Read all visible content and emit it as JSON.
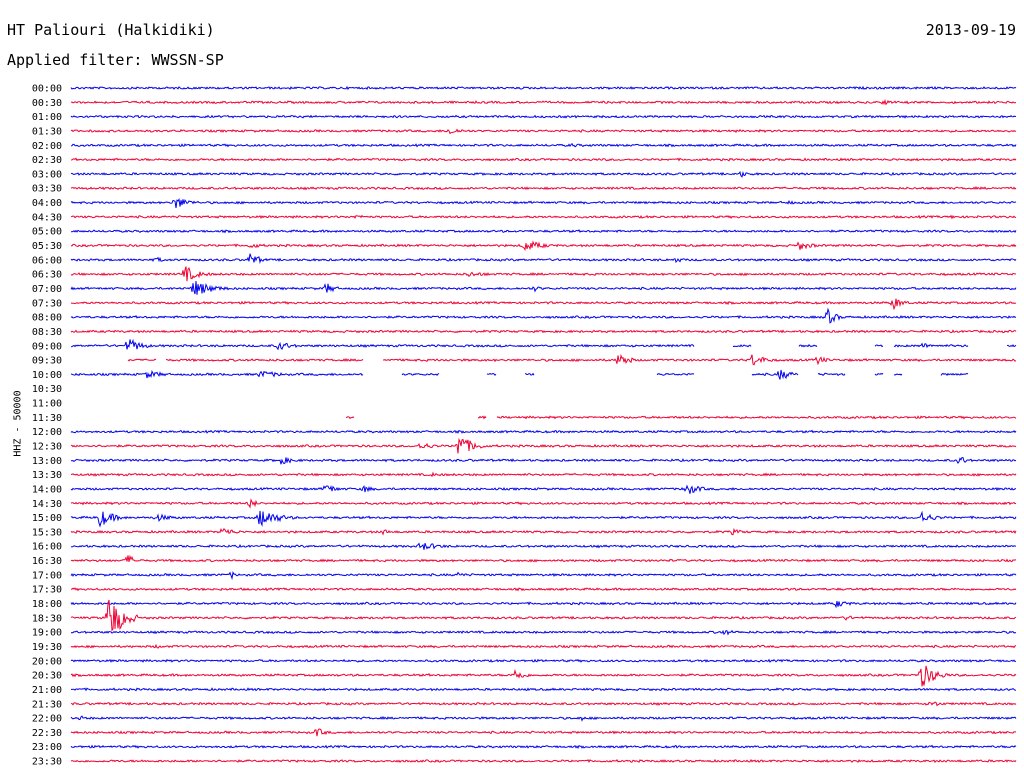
{
  "header": {
    "station": "HT Paliouri (Halkidiki)",
    "date": "2013-09-19",
    "filter": "Applied filter: WWSSN-SP"
  },
  "colors": {
    "blue": "#0000ee",
    "red": "#ee0033",
    "text": "#000000"
  },
  "chart_data": {
    "type": "line",
    "title": "HT Paliouri (Halkidiki)",
    "ylabel": "HHZ - 50000",
    "rows": [
      {
        "label": "00:00",
        "color": "blue",
        "gaps": [],
        "events": []
      },
      {
        "label": "00:30",
        "color": "red",
        "gaps": [],
        "events": [
          {
            "t": 0.86,
            "a": 3,
            "w": 0.02
          }
        ]
      },
      {
        "label": "01:00",
        "color": "blue",
        "gaps": [],
        "events": []
      },
      {
        "label": "01:30",
        "color": "red",
        "gaps": [],
        "events": [
          {
            "t": 0.4,
            "a": 4,
            "w": 0.03
          }
        ]
      },
      {
        "label": "02:00",
        "color": "blue",
        "gaps": [],
        "events": [
          {
            "t": 0.53,
            "a": 2,
            "w": 0.03
          }
        ]
      },
      {
        "label": "02:30",
        "color": "red",
        "gaps": [],
        "events": []
      },
      {
        "label": "03:00",
        "color": "blue",
        "gaps": [],
        "events": [
          {
            "t": 0.71,
            "a": 4,
            "w": 0.01
          }
        ]
      },
      {
        "label": "03:30",
        "color": "red",
        "gaps": [],
        "events": []
      },
      {
        "label": "04:00",
        "color": "blue",
        "gaps": [],
        "events": [
          {
            "t": 0.11,
            "a": 7,
            "w": 0.03
          },
          {
            "t": 0.76,
            "a": 2,
            "w": 0.02
          }
        ]
      },
      {
        "label": "04:30",
        "color": "red",
        "gaps": [],
        "events": [
          {
            "t": 0.3,
            "a": 2,
            "w": 0.04
          },
          {
            "t": 0.93,
            "a": 2,
            "w": 0.02
          }
        ]
      },
      {
        "label": "05:00",
        "color": "blue",
        "gaps": [],
        "events": []
      },
      {
        "label": "05:30",
        "color": "red",
        "gaps": [],
        "events": [
          {
            "t": 0.19,
            "a": 3,
            "w": 0.03
          },
          {
            "t": 0.48,
            "a": 6,
            "w": 0.04
          },
          {
            "t": 0.77,
            "a": 5,
            "w": 0.03
          }
        ]
      },
      {
        "label": "06:00",
        "color": "blue",
        "gaps": [],
        "events": [
          {
            "t": 0.09,
            "a": 3,
            "w": 0.02
          },
          {
            "t": 0.19,
            "a": 8,
            "w": 0.02
          },
          {
            "t": 0.64,
            "a": 3,
            "w": 0.02
          }
        ]
      },
      {
        "label": "06:30",
        "color": "red",
        "gaps": [],
        "events": [
          {
            "t": 0.12,
            "a": 9,
            "w": 0.03
          },
          {
            "t": 0.42,
            "a": 3,
            "w": 0.05
          }
        ]
      },
      {
        "label": "07:00",
        "color": "blue",
        "gaps": [],
        "events": [
          {
            "t": 0.13,
            "a": 9,
            "w": 0.04
          },
          {
            "t": 0.27,
            "a": 6,
            "w": 0.02
          },
          {
            "t": 0.49,
            "a": 3,
            "w": 0.02
          }
        ]
      },
      {
        "label": "07:30",
        "color": "red",
        "gaps": [],
        "events": [
          {
            "t": 0.87,
            "a": 7,
            "w": 0.02
          }
        ]
      },
      {
        "label": "08:00",
        "color": "blue",
        "gaps": [],
        "events": [
          {
            "t": 0.8,
            "a": 9,
            "w": 0.02
          }
        ]
      },
      {
        "label": "08:30",
        "color": "red",
        "gaps": [],
        "events": []
      },
      {
        "label": "09:00",
        "color": "blue",
        "gaps": [
          [
            0.66,
            0.7
          ],
          [
            0.72,
            0.77
          ],
          [
            0.79,
            0.85
          ],
          [
            0.86,
            0.87
          ],
          [
            0.95,
            0.99
          ]
        ],
        "events": [
          {
            "t": 0.06,
            "a": 8,
            "w": 0.03
          },
          {
            "t": 0.22,
            "a": 5,
            "w": 0.03
          },
          {
            "t": 0.9,
            "a": 3,
            "w": 0.03
          }
        ]
      },
      {
        "label": "09:30",
        "color": "red",
        "gaps": [
          [
            0.0,
            0.06
          ],
          [
            0.09,
            0.1
          ],
          [
            0.31,
            0.33
          ]
        ],
        "events": [
          {
            "t": 0.58,
            "a": 9,
            "w": 0.02
          },
          {
            "t": 0.72,
            "a": 7,
            "w": 0.03
          },
          {
            "t": 0.79,
            "a": 5,
            "w": 0.02
          }
        ]
      },
      {
        "label": "10:00",
        "color": "blue",
        "gaps": [
          [
            0.31,
            0.35
          ],
          [
            0.39,
            0.44
          ],
          [
            0.45,
            0.48
          ],
          [
            0.49,
            0.62
          ],
          [
            0.66,
            0.72
          ],
          [
            0.77,
            0.79
          ],
          [
            0.82,
            0.85
          ],
          [
            0.86,
            0.87
          ],
          [
            0.88,
            0.92
          ],
          [
            0.95,
            1.0
          ]
        ],
        "events": [
          {
            "t": 0.08,
            "a": 4,
            "w": 0.04
          },
          {
            "t": 0.2,
            "a": 4,
            "w": 0.05
          },
          {
            "t": 0.75,
            "a": 6,
            "w": 0.03
          }
        ]
      },
      {
        "label": "10:30",
        "color": "red",
        "gaps": [
          [
            0.0,
            1.0
          ]
        ],
        "events": []
      },
      {
        "label": "11:00",
        "color": "blue",
        "gaps": [
          [
            0.0,
            1.0
          ]
        ],
        "events": []
      },
      {
        "label": "11:30",
        "color": "red",
        "gaps": [
          [
            0.0,
            0.29
          ],
          [
            0.3,
            0.43
          ],
          [
            0.44,
            0.45
          ]
        ],
        "events": []
      },
      {
        "label": "12:00",
        "color": "blue",
        "gaps": [],
        "events": []
      },
      {
        "label": "12:30",
        "color": "red",
        "gaps": [],
        "events": [
          {
            "t": 0.37,
            "a": 4,
            "w": 0.03
          },
          {
            "t": 0.41,
            "a": 13,
            "w": 0.03
          }
        ]
      },
      {
        "label": "13:00",
        "color": "blue",
        "gaps": [],
        "events": [
          {
            "t": 0.22,
            "a": 5,
            "w": 0.03
          },
          {
            "t": 0.94,
            "a": 5,
            "w": 0.02
          }
        ]
      },
      {
        "label": "13:30",
        "color": "red",
        "gaps": [],
        "events": [
          {
            "t": 0.38,
            "a": 2,
            "w": 0.05
          }
        ]
      },
      {
        "label": "14:00",
        "color": "blue",
        "gaps": [],
        "events": [
          {
            "t": 0.27,
            "a": 6,
            "w": 0.02
          },
          {
            "t": 0.31,
            "a": 4,
            "w": 0.02
          },
          {
            "t": 0.65,
            "a": 7,
            "w": 0.03
          }
        ]
      },
      {
        "label": "14:30",
        "color": "red",
        "gaps": [],
        "events": [
          {
            "t": 0.19,
            "a": 7,
            "w": 0.01
          }
        ]
      },
      {
        "label": "15:00",
        "color": "blue",
        "gaps": [],
        "events": [
          {
            "t": 0.03,
            "a": 10,
            "w": 0.03
          },
          {
            "t": 0.09,
            "a": 4,
            "w": 0.04
          },
          {
            "t": 0.2,
            "a": 10,
            "w": 0.04
          },
          {
            "t": 0.9,
            "a": 6,
            "w": 0.03
          }
        ]
      },
      {
        "label": "15:30",
        "color": "red",
        "gaps": [],
        "events": [
          {
            "t": 0.16,
            "a": 5,
            "w": 0.03
          },
          {
            "t": 0.33,
            "a": 3,
            "w": 0.02
          },
          {
            "t": 0.7,
            "a": 3,
            "w": 0.03
          }
        ]
      },
      {
        "label": "16:00",
        "color": "blue",
        "gaps": [],
        "events": [
          {
            "t": 0.37,
            "a": 5,
            "w": 0.04
          }
        ]
      },
      {
        "label": "16:30",
        "color": "red",
        "gaps": [],
        "events": [
          {
            "t": 0.06,
            "a": 6,
            "w": 0.02
          }
        ]
      },
      {
        "label": "17:00",
        "color": "blue",
        "gaps": [],
        "events": [
          {
            "t": 0.17,
            "a": 4,
            "w": 0.01
          },
          {
            "t": 0.41,
            "a": 3,
            "w": 0.02
          }
        ]
      },
      {
        "label": "17:30",
        "color": "red",
        "gaps": [],
        "events": [
          {
            "t": 0.76,
            "a": 2,
            "w": 0.02
          }
        ]
      },
      {
        "label": "18:00",
        "color": "blue",
        "gaps": [],
        "events": [
          {
            "t": 0.81,
            "a": 4,
            "w": 0.03
          }
        ]
      },
      {
        "label": "18:30",
        "color": "red",
        "gaps": [],
        "events": [
          {
            "t": 0.04,
            "a": 26,
            "w": 0.03
          },
          {
            "t": 0.82,
            "a": 3,
            "w": 0.02
          }
        ]
      },
      {
        "label": "19:00",
        "color": "blue",
        "gaps": [],
        "events": [
          {
            "t": 0.69,
            "a": 3,
            "w": 0.03
          }
        ]
      },
      {
        "label": "19:30",
        "color": "red",
        "gaps": [],
        "events": [
          {
            "t": 0.09,
            "a": 2,
            "w": 0.03
          }
        ]
      },
      {
        "label": "20:00",
        "color": "blue",
        "gaps": [],
        "events": []
      },
      {
        "label": "20:30",
        "color": "red",
        "gaps": [],
        "events": [
          {
            "t": 0.47,
            "a": 7,
            "w": 0.02
          },
          {
            "t": 0.9,
            "a": 14,
            "w": 0.03
          }
        ]
      },
      {
        "label": "21:00",
        "color": "blue",
        "gaps": [],
        "events": []
      },
      {
        "label": "21:30",
        "color": "red",
        "gaps": [],
        "events": [
          {
            "t": 0.91,
            "a": 4,
            "w": 0.02
          }
        ]
      },
      {
        "label": "22:00",
        "color": "blue",
        "gaps": [],
        "events": [
          {
            "t": 0.01,
            "a": 3,
            "w": 0.01
          },
          {
            "t": 0.54,
            "a": 3,
            "w": 0.01
          }
        ]
      },
      {
        "label": "22:30",
        "color": "red",
        "gaps": [],
        "events": [
          {
            "t": 0.26,
            "a": 5,
            "w": 0.02
          }
        ]
      },
      {
        "label": "23:00",
        "color": "blue",
        "gaps": [],
        "events": []
      },
      {
        "label": "23:30",
        "color": "red",
        "gaps": [],
        "events": []
      }
    ]
  }
}
